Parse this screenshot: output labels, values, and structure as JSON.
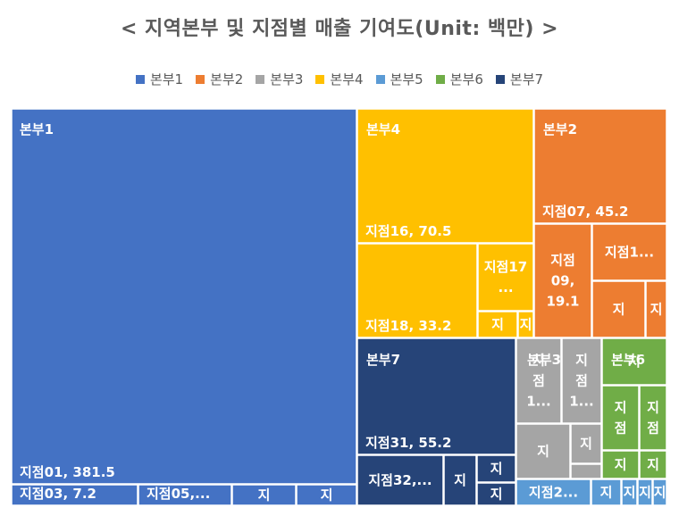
{
  "chart_data": {
    "type": "treemap",
    "title": "< 지역본부 및 지점별 매출 기여도(Unit: 백만) >",
    "legend_position": "top",
    "groups": [
      {
        "name": "본부1",
        "color": "#4472C4",
        "leaves": [
          {
            "name": "지점01",
            "label": "지점01, 381.5",
            "value": 381.5
          },
          {
            "name": "지점03",
            "label": "지점03, 7.2",
            "value": 7.2
          },
          {
            "name": "지점05",
            "label": "지점05,...",
            "value": 6.0
          },
          {
            "name": "",
            "label": "지",
            "value": 3.0
          },
          {
            "name": "",
            "label": "지",
            "value": 3.0
          }
        ]
      },
      {
        "name": "본부4",
        "color": "#FFC000",
        "leaves": [
          {
            "name": "지점16",
            "label": "지점16, 70.5",
            "value": 70.5
          },
          {
            "name": "지점18",
            "label": "지점18, 33.2",
            "value": 33.2
          },
          {
            "name": "지점17",
            "label": "지점17,...",
            "value": 12.0
          },
          {
            "name": "",
            "label": "지",
            "value": 2.0
          },
          {
            "name": "",
            "label": "지",
            "value": 1.0
          }
        ]
      },
      {
        "name": "본부2",
        "color": "#ED7D31",
        "leaves": [
          {
            "name": "지점07",
            "label": "지점07, 45.2",
            "value": 45.2
          },
          {
            "name": "지점09",
            "label": "지점09, 19.1",
            "value": 19.1
          },
          {
            "name": "",
            "label": "지점1...",
            "value": 8.0
          },
          {
            "name": "",
            "label": "지",
            "value": 6.0
          },
          {
            "name": "",
            "label": "지",
            "value": 2.0
          }
        ]
      },
      {
        "name": "본부7",
        "color": "#264478",
        "leaves": [
          {
            "name": "지점31",
            "label": "지점31, 55.2",
            "value": 55.2
          },
          {
            "name": "지점32",
            "label": "지점32,...",
            "value": 8.0
          },
          {
            "name": "",
            "label": "지",
            "value": 3.0
          },
          {
            "name": "",
            "label": "지",
            "value": 2.0
          },
          {
            "name": "",
            "label": "지",
            "value": 1.0
          }
        ]
      },
      {
        "name": "본부3",
        "color": "#A5A5A5",
        "leaves": [
          {
            "name": "",
            "label": "지점1...",
            "value": 6.0
          },
          {
            "name": "",
            "label": "지점1...",
            "value": 5.0
          },
          {
            "name": "",
            "label": "지",
            "value": 5.0
          },
          {
            "name": "",
            "label": "지",
            "value": 2.0
          },
          {
            "name": "",
            "label": "",
            "value": 1.0
          }
        ]
      },
      {
        "name": "본부6",
        "color": "#70AD47",
        "leaves": [
          {
            "name": "",
            "label": "지",
            "value": 1.0
          },
          {
            "name": "",
            "label": "지점",
            "value": 4.0
          },
          {
            "name": "",
            "label": "지점",
            "value": 3.0
          },
          {
            "name": "",
            "label": "지",
            "value": 2.0
          },
          {
            "name": "",
            "label": "지",
            "value": 1.5
          }
        ]
      },
      {
        "name": "본부5",
        "color": "#5B9BD5",
        "leaves": [
          {
            "name": "",
            "label": "지점2...",
            "value": 5.0
          },
          {
            "name": "",
            "label": "지",
            "value": 1.5
          },
          {
            "name": "",
            "label": "지",
            "value": 1.0
          },
          {
            "name": "",
            "label": "지",
            "value": 0.8
          },
          {
            "name": "",
            "label": "지",
            "value": 0.6
          }
        ]
      }
    ],
    "legend": [
      {
        "name": "본부1",
        "color": "#4472C4"
      },
      {
        "name": "본부2",
        "color": "#ED7D31"
      },
      {
        "name": "본부3",
        "color": "#A5A5A5"
      },
      {
        "name": "본부4",
        "color": "#FFC000"
      },
      {
        "name": "본부5",
        "color": "#5B9BD5"
      },
      {
        "name": "본부6",
        "color": "#70AD47"
      },
      {
        "name": "본부7",
        "color": "#264478"
      }
    ]
  }
}
